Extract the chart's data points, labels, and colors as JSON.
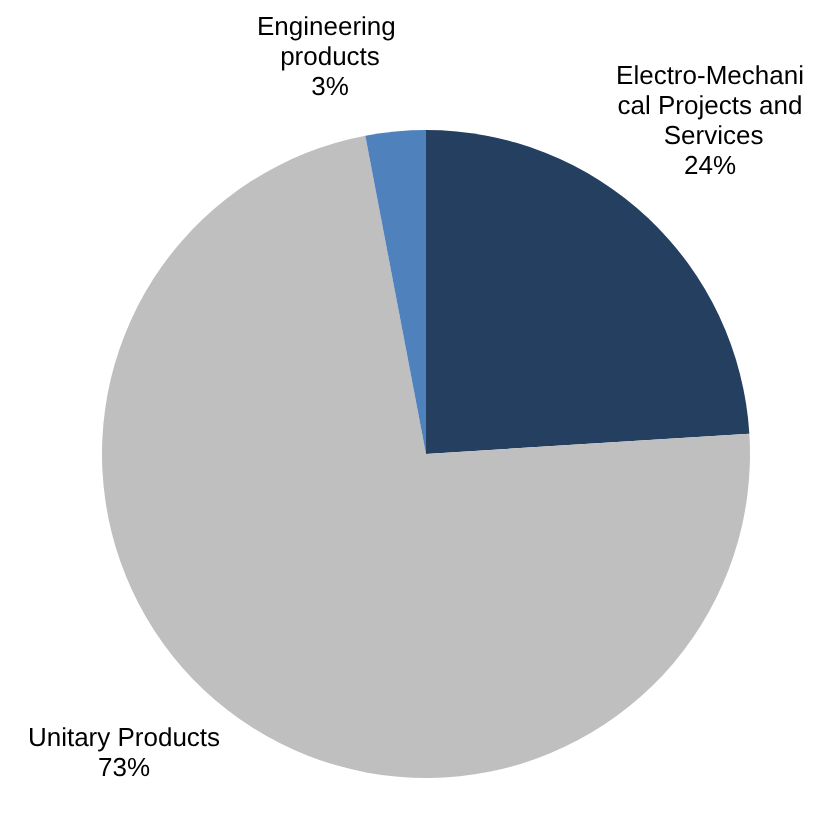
{
  "chart_data": {
    "type": "pie",
    "categories": [
      "Electro-Mechanical Projects and Services",
      "Unitary Products",
      "Engineering products"
    ],
    "values": [
      24,
      73,
      3
    ],
    "value_labels": [
      "24%",
      "73%",
      "3%"
    ],
    "colors": [
      "#243f60",
      "#bfbfbf",
      "#4f81bd"
    ],
    "legend": false
  }
}
